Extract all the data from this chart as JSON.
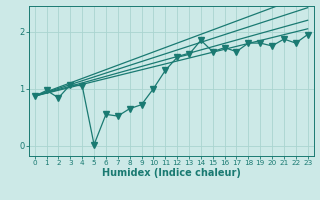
{
  "title": "",
  "xlabel": "Humidex (Indice chaleur)",
  "ylabel": "",
  "xlim": [
    -0.5,
    23.5
  ],
  "ylim": [
    -0.18,
    2.45
  ],
  "yticks": [
    0,
    1,
    2
  ],
  "xticks": [
    0,
    1,
    2,
    3,
    4,
    5,
    6,
    7,
    8,
    9,
    10,
    11,
    12,
    13,
    14,
    15,
    16,
    17,
    18,
    19,
    20,
    21,
    22,
    23
  ],
  "background_color": "#cce9e7",
  "grid_color": "#aad4d0",
  "line_color": "#1a7a72",
  "data_line": [
    0.87,
    0.97,
    0.84,
    1.07,
    1.05,
    0.02,
    0.55,
    0.52,
    0.65,
    0.72,
    1.0,
    1.32,
    1.55,
    1.6,
    1.85,
    1.65,
    1.72,
    1.65,
    1.8,
    1.8,
    1.75,
    1.87,
    1.8,
    1.95
  ],
  "reg_line1_start": 0.87,
  "reg_line1_end": 2.65,
  "reg_line2_start": 0.87,
  "reg_line2_end": 2.42,
  "reg_line3_start": 0.87,
  "reg_line3_end": 2.2,
  "reg_line4_start": 0.87,
  "reg_line4_end": 2.05,
  "marker": "v",
  "markersize": 4,
  "linewidth": 0.9,
  "xlabel_fontsize": 7,
  "tick_fontsize": 6
}
